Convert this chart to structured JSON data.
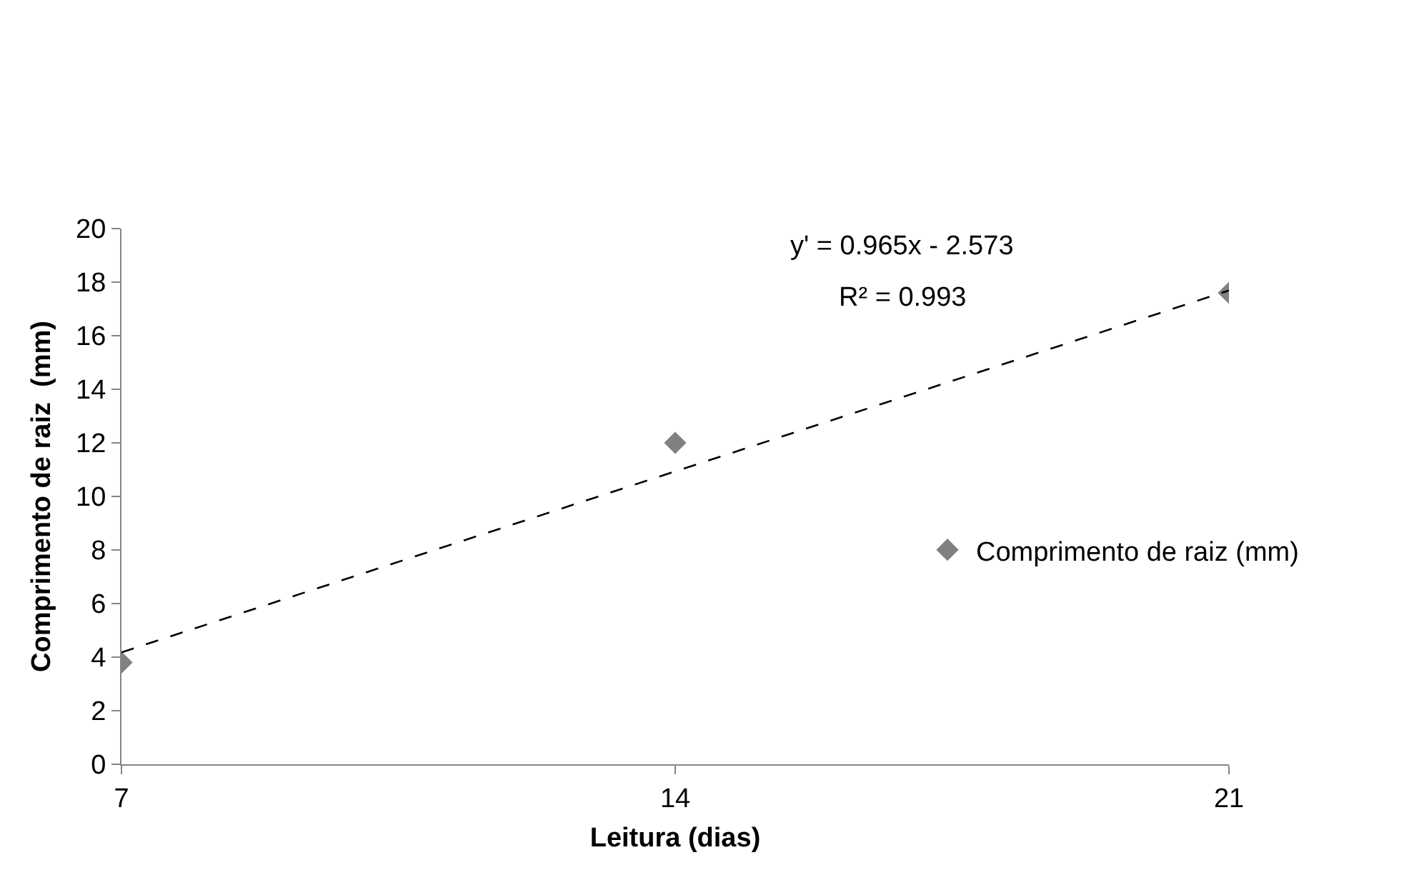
{
  "chart_data": {
    "type": "scatter",
    "xlabel": "Leitura (dias)",
    "ylabel": "Comprimento de raiz  (mm)",
    "x": [
      7,
      14,
      21
    ],
    "series": [
      {
        "name": "Comprimento de raiz (mm)",
        "color": "#808080",
        "values": [
          3.8,
          12.0,
          17.6
        ],
        "marker": "diamond"
      },
      {
        "type": "line",
        "color": "#000000",
        "x": [
          7,
          21
        ],
        "values": [
          4.18,
          17.69
        ],
        "line_style": "dashed",
        "marker": "none"
      }
    ],
    "annotations": [
      "y' = 0.965x - 2.573",
      "R² = 0.993"
    ],
    "xlim": [
      7,
      21
    ],
    "xticks": [
      7,
      14,
      21
    ],
    "ylim": [
      0,
      20
    ],
    "yticks": [
      0,
      2,
      4,
      6,
      8,
      10,
      12,
      14,
      16,
      18,
      20
    ],
    "legend": "right"
  }
}
